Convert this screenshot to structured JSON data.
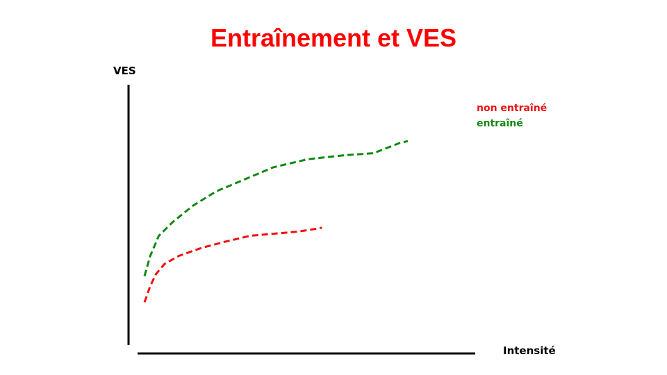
{
  "title": "Entraînement et VES",
  "chart_data": {
    "type": "line",
    "title": "Entraînement et VES",
    "xlabel": "Intensité",
    "ylabel": "VES",
    "xlim": [
      0,
      100
    ],
    "ylim": [
      0,
      100
    ],
    "grid": false,
    "legend_position": "top-right",
    "series": [
      {
        "name": "non entraîné",
        "color": "#ee1111",
        "style": "dashed",
        "x": [
          0,
          2,
          4,
          7,
          12,
          20,
          28,
          37,
          45,
          53,
          58,
          62
        ],
        "y": [
          12,
          20,
          26,
          31,
          35,
          39,
          42,
          45,
          46,
          47,
          48,
          49
        ]
      },
      {
        "name": "entraîné",
        "color": "#118811",
        "style": "dashed",
        "x": [
          0,
          2,
          5,
          10,
          17,
          25,
          35,
          45,
          57,
          70,
          80,
          89,
          92
        ],
        "y": [
          25,
          35,
          45,
          52,
          60,
          67,
          73,
          79,
          83,
          85,
          86,
          91,
          92
        ]
      }
    ]
  }
}
